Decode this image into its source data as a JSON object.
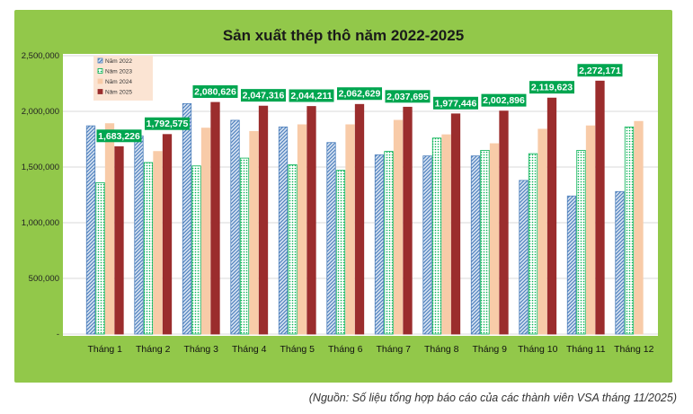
{
  "chart_data": {
    "type": "bar",
    "title": "Sản xuất thép thô năm 2022-2025",
    "categories": [
      "Tháng 1",
      "Tháng 2",
      "Tháng 3",
      "Tháng 4",
      "Tháng 5",
      "Tháng 6",
      "Tháng 7",
      "Tháng 8",
      "Tháng 9",
      "Tháng 10",
      "Tháng 11",
      "Tháng 12"
    ],
    "ylim": [
      0,
      2500000
    ],
    "yticks": [
      "-",
      "500,000",
      "1,000,000",
      "1,500,000",
      "2,000,000",
      "2,500,000"
    ],
    "grid": true,
    "legend_position": "top-left",
    "series": [
      {
        "name": "Năm 2022",
        "color": "#4f81bd",
        "pattern": "hatch",
        "values": [
          1870000,
          1780000,
          2070000,
          1920000,
          1860000,
          1720000,
          1610000,
          1600000,
          1600000,
          1380000,
          1240000,
          1280000
        ]
      },
      {
        "name": "Năm 2023",
        "color": "#00b050",
        "pattern": "dots",
        "values": [
          1360000,
          1540000,
          1510000,
          1580000,
          1520000,
          1470000,
          1640000,
          1760000,
          1650000,
          1620000,
          1650000,
          1860000
        ]
      },
      {
        "name": "Năm 2024",
        "color": "#f8cba8",
        "pattern": "solid",
        "values": [
          1890000,
          1640000,
          1850000,
          1820000,
          1880000,
          1880000,
          1920000,
          1790000,
          1710000,
          1840000,
          1870000,
          1910000
        ]
      },
      {
        "name": "Năm 2025",
        "color": "#9b2d2d",
        "pattern": "solid",
        "values": [
          1683226,
          1792575,
          2080626,
          2047316,
          2044211,
          2062629,
          2037695,
          1977446,
          2002896,
          2119623,
          2272171,
          null
        ]
      }
    ],
    "data_labels": [
      "1,683,226",
      "1,792,575",
      "2,080,626",
      "2,047,316",
      "2,044,211",
      "2,062,629",
      "2,037,695",
      "1,977,446",
      "2,002,896",
      "2,119,623",
      "2,272,171"
    ]
  },
  "source_note": "(Nguồn: Số liệu tổng hợp báo cáo của các thành viên VSA tháng 11/2025)"
}
